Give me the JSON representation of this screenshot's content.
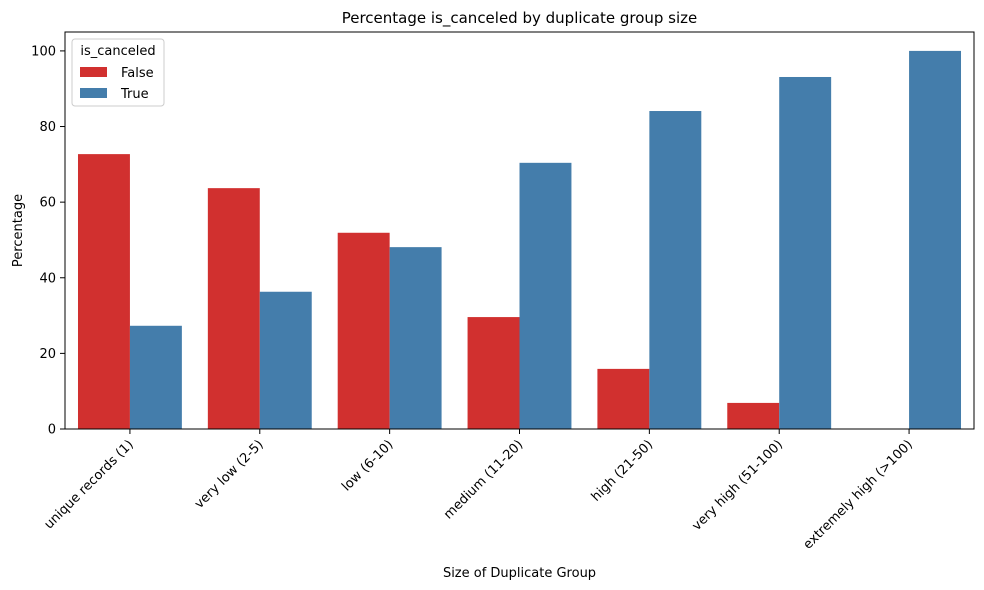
{
  "chart_data": {
    "type": "bar",
    "title": "Percentage is_canceled by duplicate group size",
    "xlabel": "Size of Duplicate Group",
    "ylabel": "Percentage",
    "ylim": [
      0,
      105
    ],
    "yticks": [
      0,
      20,
      40,
      60,
      80,
      100
    ],
    "categories": [
      "unique records (1)",
      "very low (2-5)",
      "low (6-10)",
      "medium (11-20)",
      "high (21-50)",
      "very high (51-100)",
      "extremely high (>100)"
    ],
    "legend": {
      "title": "is_canceled",
      "placement": "top-left"
    },
    "series": [
      {
        "name": "False",
        "color": "#d1302f",
        "values": [
          72.7,
          63.7,
          51.9,
          29.6,
          15.9,
          6.9,
          0
        ]
      },
      {
        "name": "True",
        "color": "#447dab",
        "values": [
          27.3,
          36.3,
          48.1,
          70.4,
          84.1,
          93.1,
          100
        ]
      }
    ],
    "grid": false
  }
}
